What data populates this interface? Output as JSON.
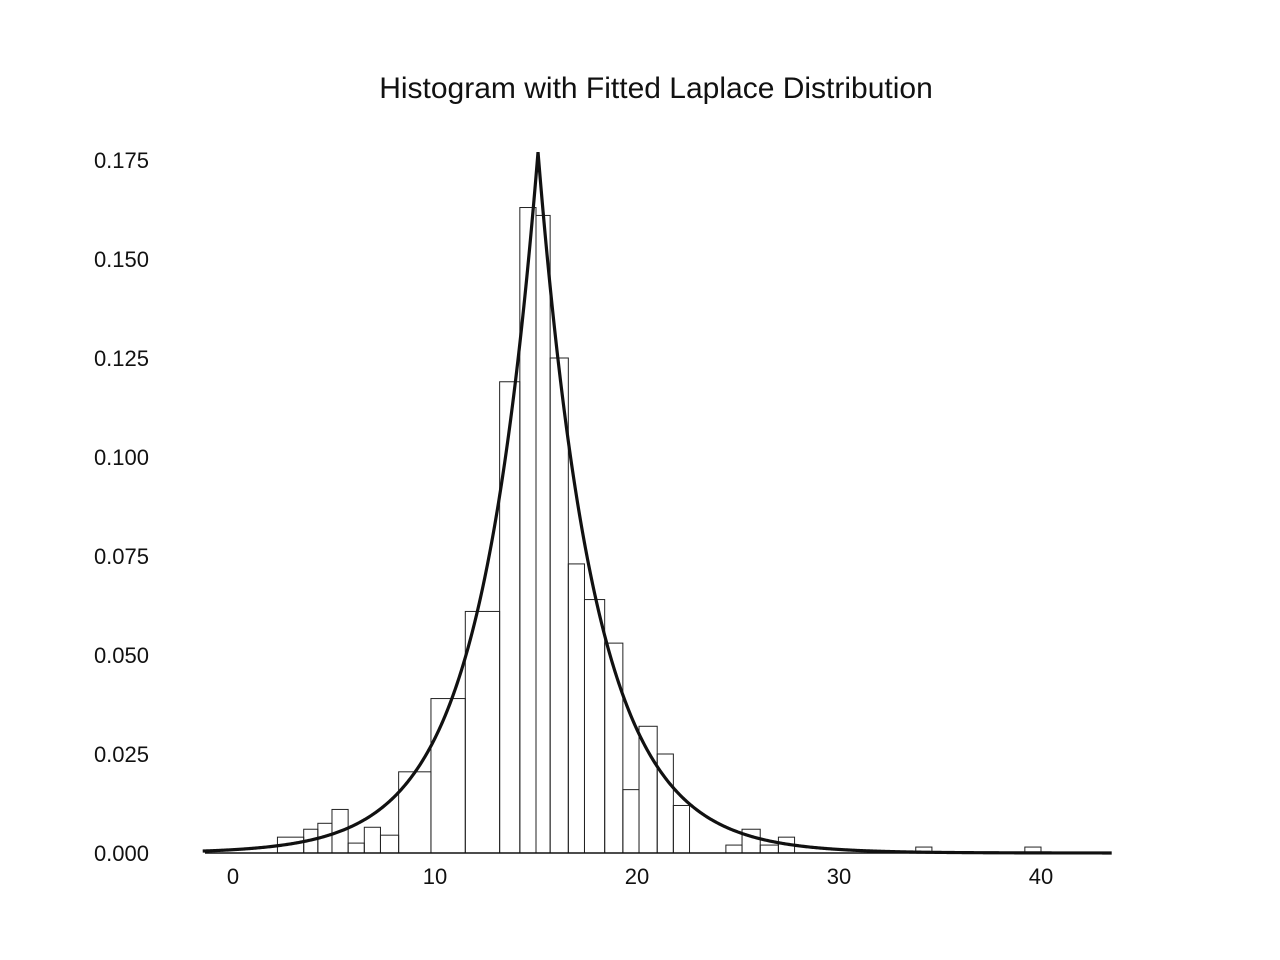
{
  "chart_data": {
    "type": "bar",
    "title": "Histogram with Fitted Laplace Distribution",
    "xlabel": "",
    "ylabel": "",
    "xlim": [
      -1.5,
      43.5
    ],
    "ylim": [
      0,
      0.175
    ],
    "grid": false,
    "legend": "none",
    "x_ticks": [
      0,
      10,
      20,
      30,
      40
    ],
    "x_tick_labels": [
      "0",
      "10",
      "20",
      "30",
      "40"
    ],
    "y_ticks": [
      0,
      0.025,
      0.05,
      0.075,
      0.1,
      0.125,
      0.15,
      0.175
    ],
    "y_tick_labels": [
      "0.000",
      "0.025",
      "0.050",
      "0.075",
      "0.100",
      "0.125",
      "0.150",
      "0.175"
    ],
    "histogram": {
      "bin_edges": [
        2.2,
        3.5,
        4.2,
        4.9,
        5.7,
        6.5,
        7.3,
        8.2,
        9.8,
        11.5,
        13.2,
        14.2,
        15.0,
        15.7,
        16.6,
        17.4,
        18.4,
        19.3,
        20.1,
        21.0,
        21.8,
        22.6,
        24.4,
        25.2,
        26.1,
        27.0,
        27.8,
        33.8,
        34.6,
        39.2,
        40.0
      ],
      "densities": [
        0.004,
        0.006,
        0.0075,
        0.011,
        0.0025,
        0.0065,
        0.0045,
        0.0205,
        0.039,
        0.061,
        0.119,
        0.163,
        0.161,
        0.125,
        0.073,
        0.064,
        0.053,
        0.016,
        0.032,
        0.025,
        0.012,
        0.0,
        0.002,
        0.006,
        0.002,
        0.004,
        0.0,
        0.0015,
        0.0,
        0.0015
      ]
    },
    "fitted_curve": {
      "distribution": "Laplace",
      "location": 15.1,
      "scale": 2.82,
      "peak_density": 0.177,
      "x_range": [
        -1.5,
        43.5
      ]
    },
    "colors": {
      "curve": "#111111",
      "bars": "#222222",
      "axis": "#111111"
    }
  }
}
